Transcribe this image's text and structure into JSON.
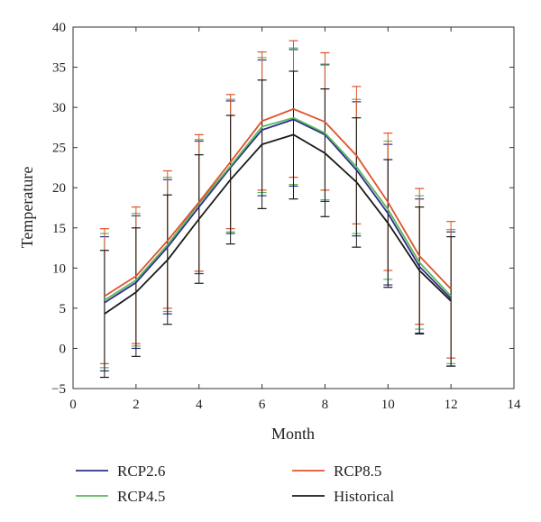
{
  "chart_data": {
    "type": "line",
    "title": "",
    "xlabel": "Month",
    "ylabel": "Temperature",
    "xlim": [
      0,
      14
    ],
    "ylim": [
      -5,
      40
    ],
    "xticks": [
      0,
      2,
      4,
      6,
      8,
      10,
      12,
      14
    ],
    "yticks": [
      -5,
      0,
      5,
      10,
      15,
      20,
      25,
      30,
      35,
      40
    ],
    "grid": false,
    "legend_position": "bottom",
    "x": [
      1,
      2,
      3,
      4,
      5,
      6,
      7,
      8,
      9,
      10,
      11,
      12
    ],
    "series": [
      {
        "name": "RCP2.6",
        "color": "#2e2e8c",
        "values": [
          5.7,
          8.2,
          12.6,
          17.6,
          22.5,
          27.2,
          28.5,
          26.6,
          22.2,
          16.8,
          10.2,
          6.2
        ],
        "upper": [
          13.9,
          16.5,
          21.0,
          25.8,
          30.8,
          35.9,
          37.2,
          35.3,
          30.7,
          25.4,
          18.6,
          14.5
        ],
        "lower": [
          -2.8,
          0.0,
          4.3,
          9.3,
          14.3,
          19.0,
          20.2,
          18.3,
          14.0,
          7.9,
          1.9,
          -2.2
        ]
      },
      {
        "name": "RCP4.5",
        "color": "#5cb85c",
        "values": [
          6.0,
          8.5,
          12.9,
          18.0,
          22.7,
          27.6,
          28.7,
          26.8,
          22.6,
          17.3,
          10.7,
          6.5
        ],
        "upper": [
          14.3,
          16.8,
          21.3,
          26.0,
          31.0,
          36.2,
          37.4,
          35.4,
          31.0,
          25.8,
          19.0,
          14.8
        ],
        "lower": [
          -2.4,
          0.3,
          4.6,
          9.6,
          14.5,
          19.4,
          20.4,
          18.5,
          14.3,
          8.6,
          2.4,
          -1.9
        ]
      },
      {
        "name": "RCP8.5",
        "color": "#e0522a",
        "values": [
          6.5,
          9.0,
          13.4,
          18.2,
          23.2,
          28.3,
          29.8,
          28.2,
          24.0,
          18.2,
          11.5,
          7.4
        ],
        "upper": [
          14.9,
          17.6,
          22.1,
          26.6,
          31.6,
          36.9,
          38.3,
          36.8,
          32.6,
          26.8,
          19.9,
          15.8
        ],
        "lower": [
          -1.9,
          0.6,
          5.0,
          9.6,
          14.9,
          19.7,
          21.3,
          19.7,
          15.5,
          9.7,
          3.0,
          -1.2
        ]
      },
      {
        "name": "Historical",
        "color": "#1a1a1a",
        "values": [
          4.3,
          7.0,
          11.0,
          16.1,
          21.0,
          25.4,
          26.6,
          24.3,
          20.7,
          15.6,
          9.7,
          5.9
        ],
        "upper": [
          12.2,
          15.0,
          19.1,
          24.1,
          29.0,
          33.4,
          34.5,
          32.3,
          28.7,
          23.5,
          17.6,
          13.9
        ],
        "lower": [
          -3.6,
          -1.0,
          3.0,
          8.1,
          13.0,
          17.4,
          18.6,
          16.4,
          12.6,
          7.6,
          1.8,
          -2.2
        ]
      }
    ]
  },
  "tick_labels": {
    "x": [
      "0",
      "2",
      "4",
      "6",
      "8",
      "10",
      "12",
      "14"
    ],
    "y": [
      "−5",
      "0",
      "5",
      "10",
      "15",
      "20",
      "25",
      "30",
      "35",
      "40"
    ]
  }
}
